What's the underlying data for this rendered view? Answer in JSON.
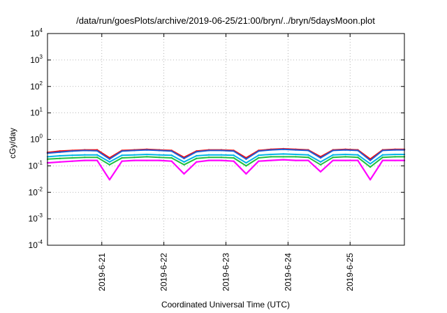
{
  "chart_data": {
    "type": "line",
    "title": "/data/run/goesPlots/archive/2019-06-25/21:00/bryn/../bryn/5daysMoon.plot",
    "xlabel": "Coordinated Universal Time (UTC)",
    "ylabel": "cGy/day",
    "yscale": "log",
    "grid": true,
    "ylim": [
      0.0001,
      10000
    ],
    "yticks": [
      {
        "base": "10",
        "exp": "4"
      },
      {
        "base": "10",
        "exp": "3"
      },
      {
        "base": "10",
        "exp": "2"
      },
      {
        "base": "10",
        "exp": "1"
      },
      {
        "base": "10",
        "exp": "0"
      },
      {
        "base": "10",
        "exp": "-1"
      },
      {
        "base": "10",
        "exp": "-2"
      },
      {
        "base": "10",
        "exp": "-3"
      },
      {
        "base": "10",
        "exp": "-4"
      }
    ],
    "xlim": [
      "2019-06-20 03:00",
      "2019-06-25 21:00"
    ],
    "xticks": [
      "2019-6-21",
      "2019-6-22",
      "2019-6-23",
      "2019-6-24",
      "2019-6-25"
    ],
    "x_sample_hours": [
      0,
      4.8,
      9.6,
      14.4,
      19.2,
      24,
      28.8,
      33.6,
      38.4,
      43.2,
      48,
      52.8,
      57.6,
      62.4,
      67.2,
      72,
      76.8,
      81.6,
      86.4,
      91.2,
      96,
      100.8,
      105.6,
      110.4,
      115.2,
      120,
      124.8,
      129.6,
      134.4,
      138
    ],
    "series": [
      {
        "color": "#ff0000",
        "values": [
          0.32,
          0.36,
          0.38,
          0.4,
          0.4,
          0.2,
          0.38,
          0.4,
          0.42,
          0.4,
          0.38,
          0.21,
          0.36,
          0.4,
          0.4,
          0.38,
          0.2,
          0.38,
          0.42,
          0.44,
          0.42,
          0.4,
          0.22,
          0.4,
          0.42,
          0.4,
          0.18,
          0.4,
          0.42,
          0.42
        ]
      },
      {
        "color": "#1f5fd6",
        "values": [
          0.3,
          0.33,
          0.36,
          0.38,
          0.37,
          0.18,
          0.36,
          0.38,
          0.4,
          0.38,
          0.36,
          0.19,
          0.34,
          0.38,
          0.38,
          0.36,
          0.18,
          0.36,
          0.4,
          0.42,
          0.4,
          0.38,
          0.2,
          0.38,
          0.4,
          0.38,
          0.16,
          0.38,
          0.4,
          0.4
        ]
      },
      {
        "color": "#00b4e6",
        "values": [
          0.22,
          0.24,
          0.25,
          0.26,
          0.26,
          0.14,
          0.25,
          0.26,
          0.27,
          0.26,
          0.25,
          0.14,
          0.24,
          0.26,
          0.26,
          0.25,
          0.13,
          0.25,
          0.27,
          0.28,
          0.27,
          0.26,
          0.14,
          0.26,
          0.27,
          0.26,
          0.12,
          0.26,
          0.27,
          0.27
        ]
      },
      {
        "color": "#20c040",
        "values": [
          0.18,
          0.19,
          0.2,
          0.21,
          0.21,
          0.11,
          0.2,
          0.21,
          0.22,
          0.21,
          0.2,
          0.11,
          0.19,
          0.21,
          0.21,
          0.2,
          0.1,
          0.2,
          0.22,
          0.22,
          0.22,
          0.21,
          0.11,
          0.21,
          0.22,
          0.21,
          0.09,
          0.21,
          0.22,
          0.22
        ]
      },
      {
        "color": "#ff00ff",
        "values": [
          0.13,
          0.14,
          0.15,
          0.16,
          0.16,
          0.03,
          0.15,
          0.16,
          0.16,
          0.16,
          0.15,
          0.05,
          0.14,
          0.16,
          0.16,
          0.15,
          0.05,
          0.15,
          0.16,
          0.17,
          0.16,
          0.16,
          0.06,
          0.16,
          0.16,
          0.16,
          0.03,
          0.16,
          0.16,
          0.16
        ]
      }
    ]
  }
}
